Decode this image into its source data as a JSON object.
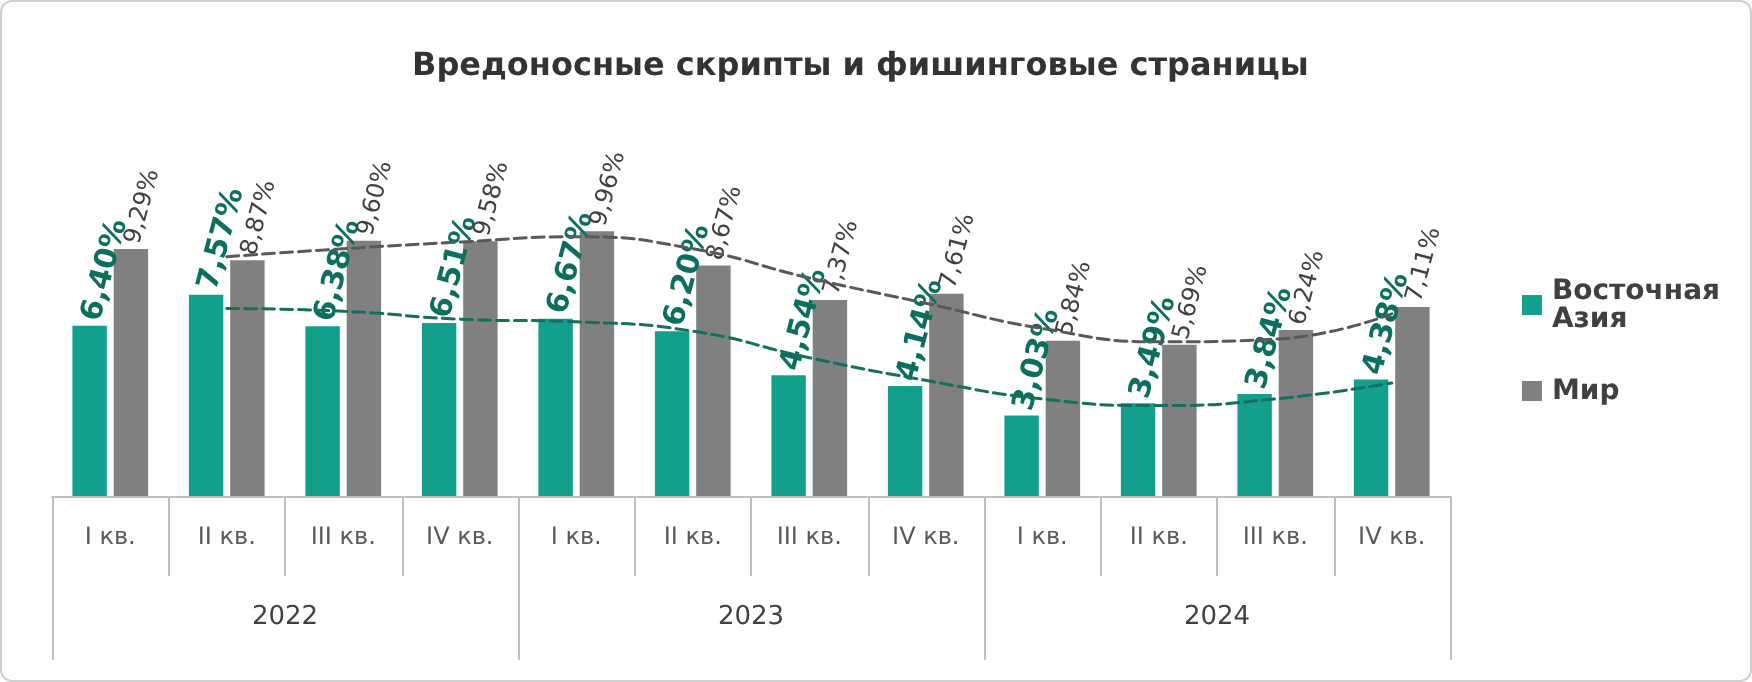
{
  "chart_data": {
    "type": "bar",
    "title": "Вредоносные скрипты и фишинговые страницы",
    "categories": [
      "I кв.",
      "II кв.",
      "III кв.",
      "IV кв.",
      "I кв.",
      "II кв.",
      "III кв.",
      "IV кв.",
      "I кв.",
      "II кв.",
      "III кв.",
      "IV кв."
    ],
    "annotations": [
      "2022",
      "2023",
      "2024"
    ],
    "series": [
      {
        "name": "Восточная Азия",
        "color": "#12a08c",
        "values": [
          6.4,
          7.57,
          6.38,
          6.51,
          6.67,
          6.2,
          4.54,
          4.14,
          3.03,
          3.49,
          3.84,
          4.38
        ],
        "value_labels": [
          "6,40%",
          "7,57%",
          "6,38%",
          "6,51%",
          "6,67%",
          "6,20%",
          "4,54%",
          "4,14%",
          "3,03%",
          "3,49%",
          "3,84%",
          "4,38%"
        ]
      },
      {
        "name": "Мир",
        "color": "#808080",
        "values": [
          9.29,
          8.87,
          9.6,
          9.58,
          9.96,
          8.67,
          7.37,
          7.61,
          5.84,
          5.69,
          6.24,
          7.11
        ],
        "value_labels": [
          "9,29%",
          "8,87%",
          "9,60%",
          "9,58%",
          "9,96%",
          "8,67%",
          "7,37%",
          "7,61%",
          "5,84%",
          "5,69%",
          "6,24%",
          "7,11%"
        ]
      },
      {
        "type": "line",
        "color": "#12705f",
        "line_style": "dashed",
        "values": [
          null,
          7.05,
          6.95,
          6.65,
          6.55,
          6.2,
          5.2,
          4.35,
          3.65,
          3.4,
          3.65,
          4.25
        ]
      },
      {
        "type": "line",
        "color": "#595959",
        "line_style": "dashed",
        "values": [
          null,
          9.0,
          9.3,
          9.55,
          9.75,
          9.3,
          8.2,
          7.25,
          6.3,
          5.8,
          5.9,
          6.85
        ]
      }
    ],
    "legend": "right",
    "grid": false
  }
}
